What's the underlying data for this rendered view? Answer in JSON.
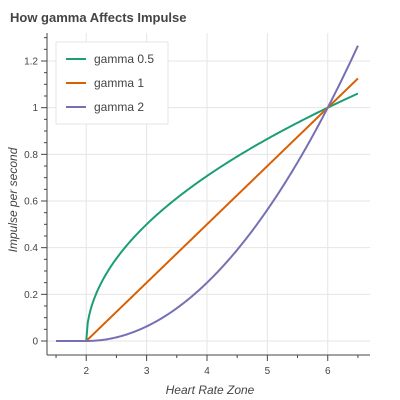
{
  "chart_data": {
    "type": "line",
    "title": "How gamma Affects Impulse",
    "xlabel": "Heart Rate Zone",
    "ylabel": "Impulse per second",
    "xlim": [
      1.35,
      6.7
    ],
    "ylim": [
      -0.06,
      1.32
    ],
    "xticks": [
      2,
      3,
      4,
      5,
      6
    ],
    "yticks": [
      0,
      0.2,
      0.4,
      0.6,
      0.8,
      1,
      1.2
    ],
    "grid": true,
    "legend_position": "top-left",
    "series": [
      {
        "name": "gamma 0.5",
        "gamma": 0.5,
        "color": "#1b9e77"
      },
      {
        "name": "gamma 1",
        "gamma": 1,
        "color": "#d95f02"
      },
      {
        "name": "gamma 2",
        "gamma": 2,
        "color": "#7570b3"
      }
    ],
    "x_range": [
      1.5,
      6.5
    ],
    "function": "y = ((x - 2) / 4) ^ gamma for x >= 2, else 0"
  }
}
